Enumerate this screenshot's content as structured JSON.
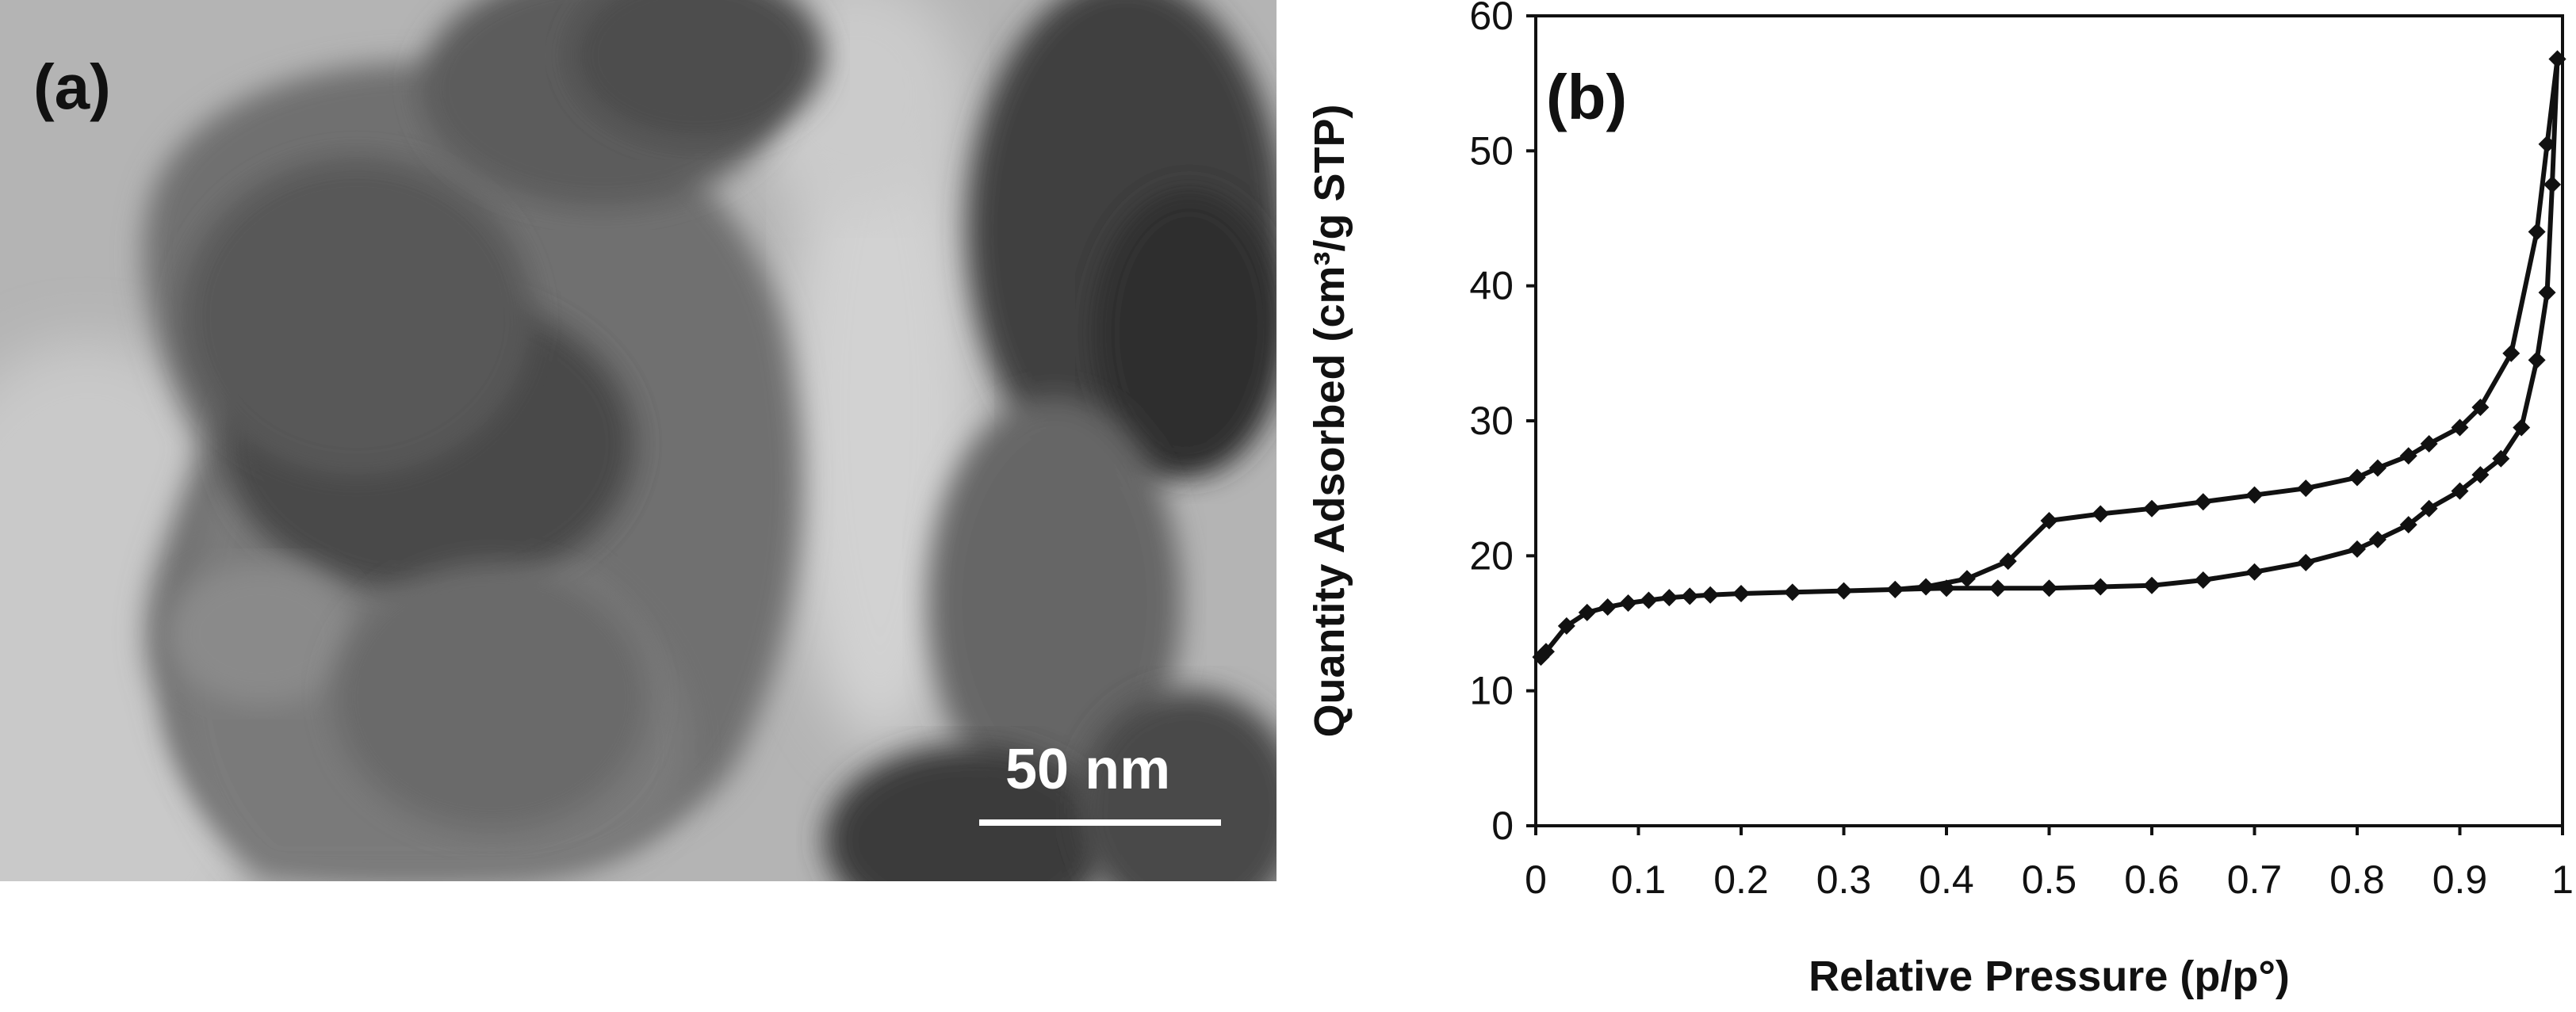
{
  "panel_a": {
    "label": "(a)",
    "scale_bar_label": "50 nm"
  },
  "panel_b": {
    "label": "(b)"
  },
  "chart_data": {
    "type": "line",
    "title": "",
    "xlabel": "Relative Pressure (p/p°)",
    "ylabel": "Quantity  Adsorbed (cm³/g STP)",
    "xlim": [
      0,
      1
    ],
    "ylim": [
      0,
      60
    ],
    "xticks": [
      "0",
      "0.1",
      "0.2",
      "0.3",
      "0.4",
      "0.5",
      "0.6",
      "0.7",
      "0.8",
      "0.9",
      "1"
    ],
    "yticks": [
      "0",
      "10",
      "20",
      "30",
      "40",
      "50",
      "60"
    ],
    "grid": false,
    "legend": "none",
    "series": [
      {
        "x": [
          0.005,
          0.01,
          0.03,
          0.05,
          0.07,
          0.09,
          0.11,
          0.13,
          0.15,
          0.17,
          0.2,
          0.25,
          0.3,
          0.35,
          0.4,
          0.45,
          0.5,
          0.55,
          0.6,
          0.65,
          0.7,
          0.75,
          0.8,
          0.82,
          0.85,
          0.87,
          0.9,
          0.92,
          0.94,
          0.96,
          0.975,
          0.985,
          0.99,
          0.995
        ],
        "y": [
          12.5,
          12.9,
          14.8,
          15.8,
          16.2,
          16.5,
          16.7,
          16.9,
          17.0,
          17.1,
          17.2,
          17.3,
          17.4,
          17.5,
          17.6,
          17.6,
          17.6,
          17.7,
          17.8,
          18.2,
          18.8,
          19.5,
          20.5,
          21.2,
          22.3,
          23.5,
          24.8,
          26.0,
          27.2,
          29.5,
          34.5,
          39.5,
          47.5,
          56.8
        ]
      },
      {
        "x": [
          0.995,
          0.985,
          0.975,
          0.95,
          0.92,
          0.9,
          0.87,
          0.85,
          0.82,
          0.8,
          0.75,
          0.7,
          0.65,
          0.6,
          0.55,
          0.5,
          0.46,
          0.42,
          0.38,
          0.35
        ],
        "y": [
          56.8,
          50.5,
          44.0,
          35.0,
          31.0,
          29.5,
          28.3,
          27.4,
          26.5,
          25.8,
          25.0,
          24.5,
          24.0,
          23.5,
          23.1,
          22.6,
          19.6,
          18.3,
          17.7,
          17.5
        ]
      }
    ]
  }
}
